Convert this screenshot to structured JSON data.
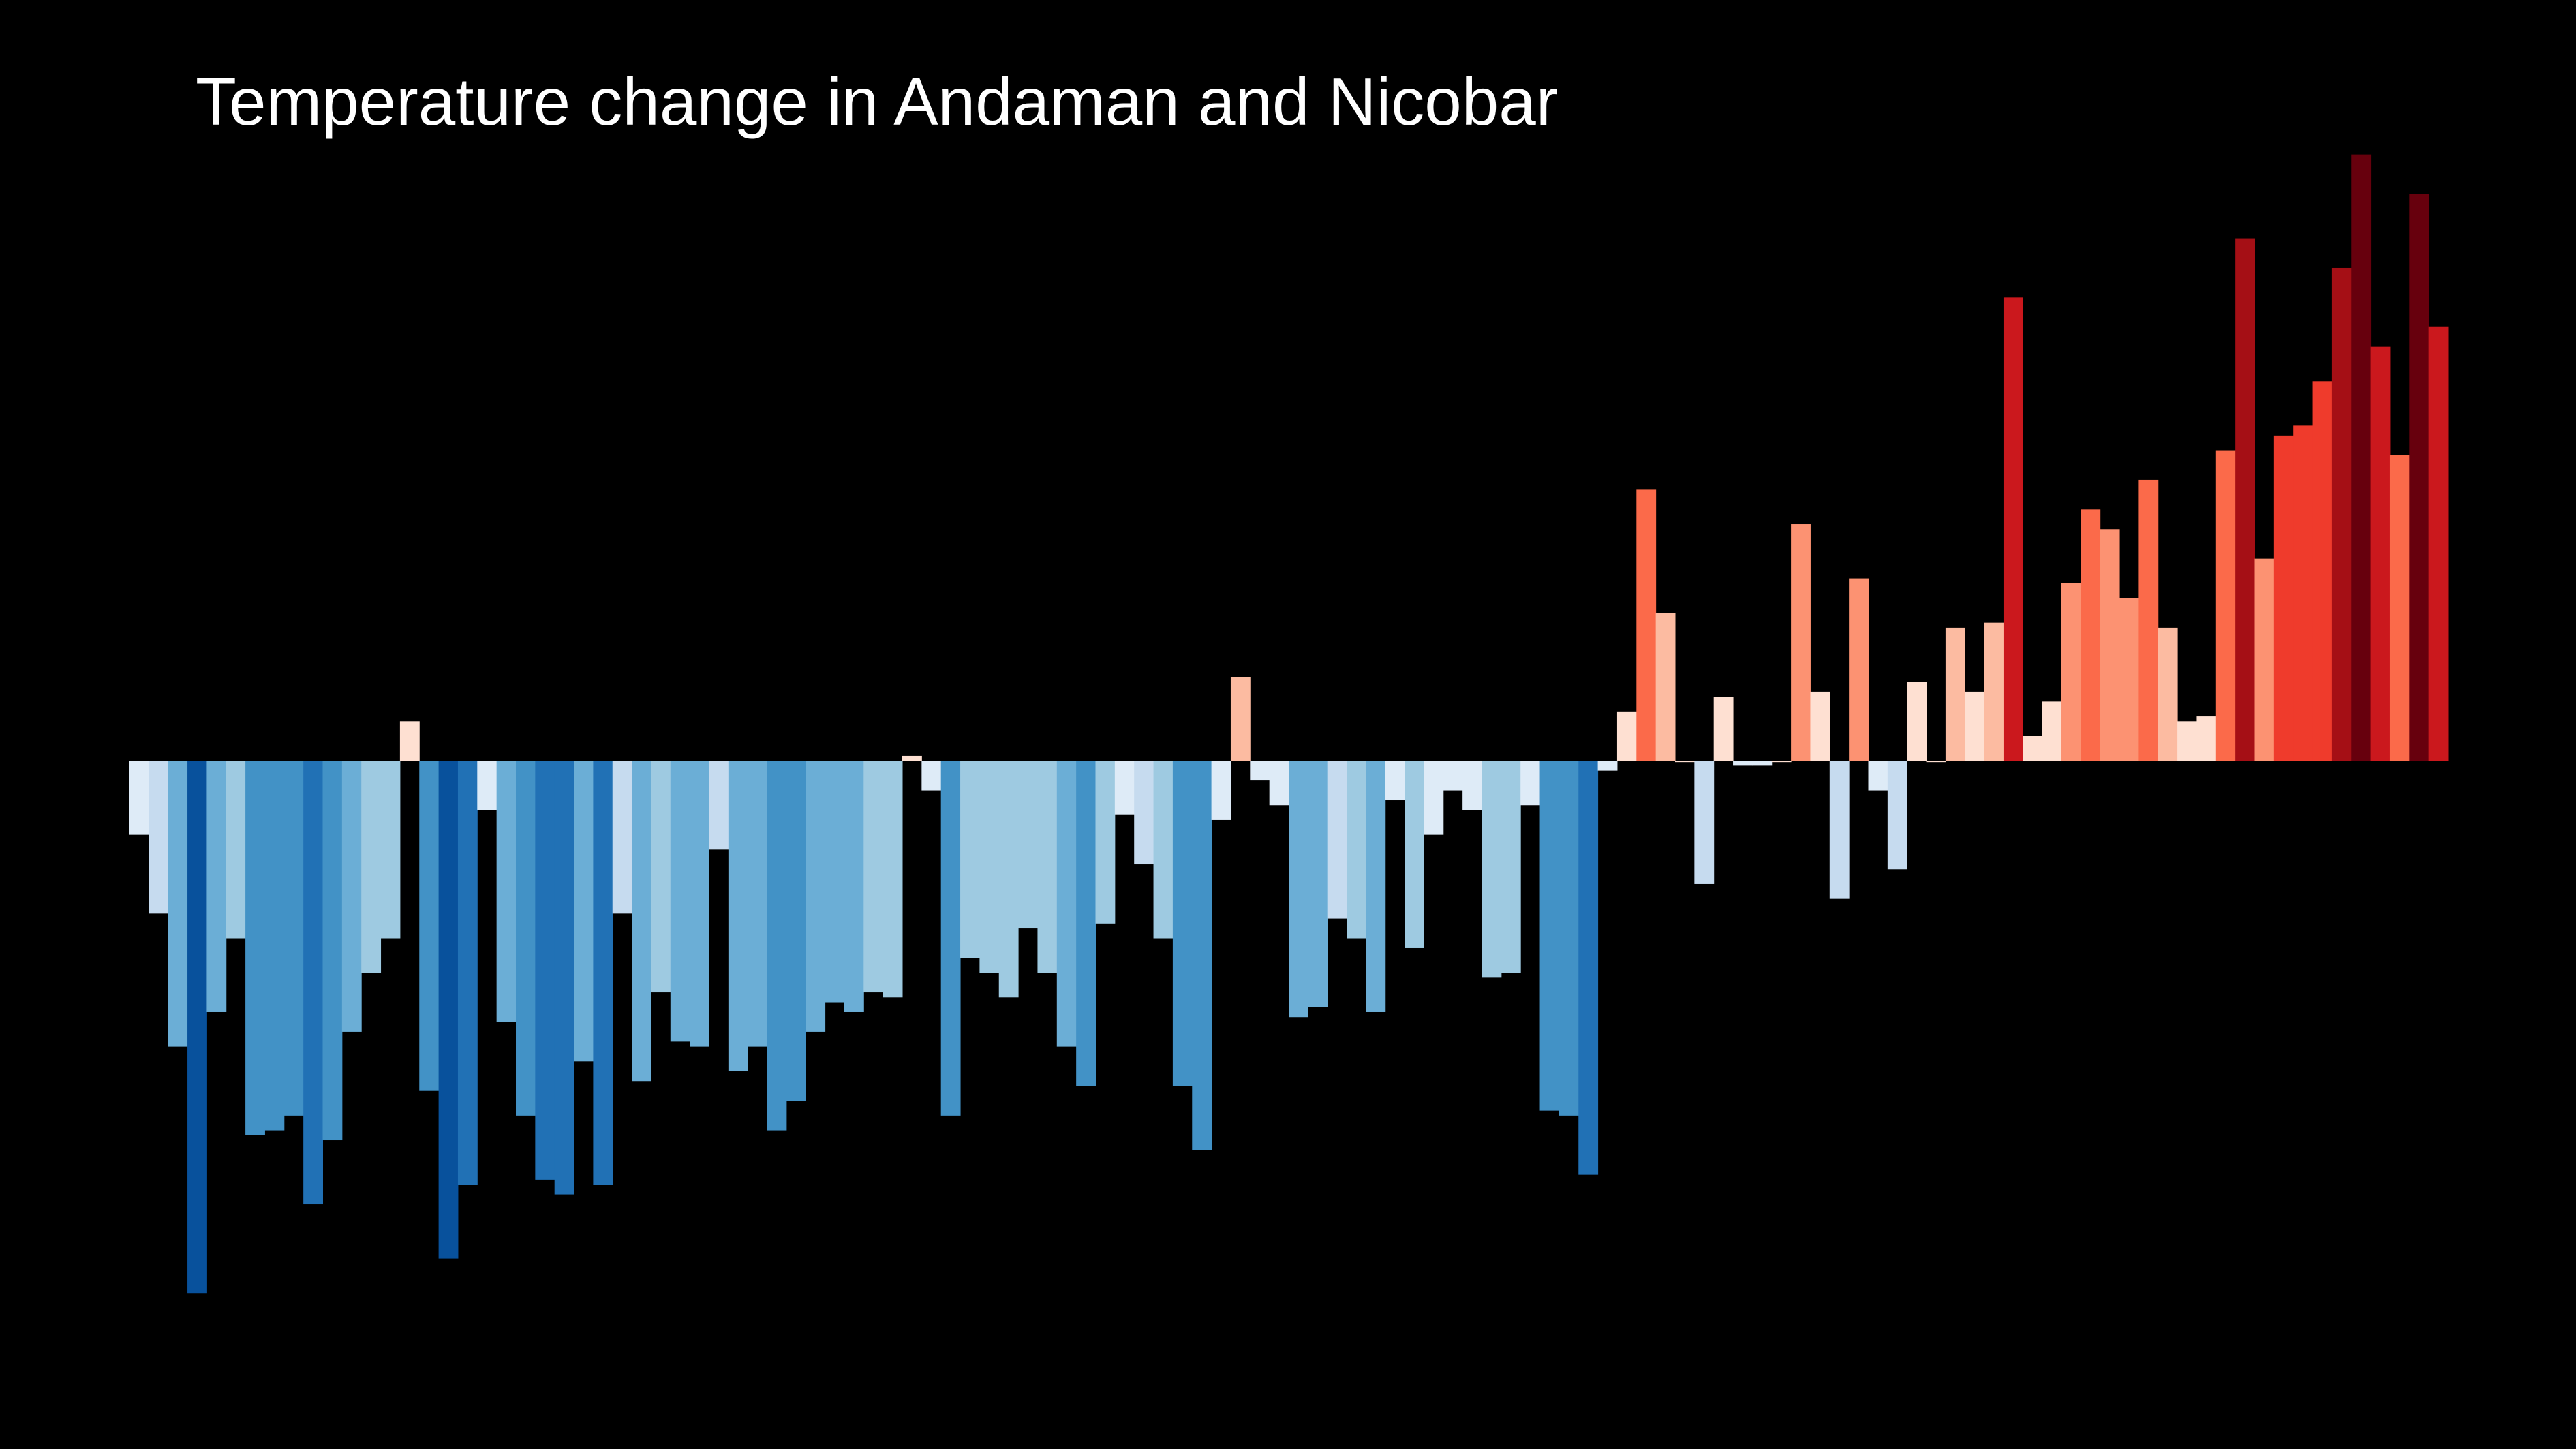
{
  "chart_data": {
    "type": "bar",
    "title": "Temperature change in Andaman and Nicobar",
    "values": [
      -0.15,
      -0.31,
      -0.58,
      -1.08,
      -0.51,
      -0.36,
      -0.76,
      -0.75,
      -0.72,
      -0.9,
      -0.77,
      -0.55,
      -0.43,
      -0.36,
      0.08,
      -0.67,
      -1.01,
      -0.86,
      -0.1,
      -0.53,
      -0.72,
      -0.85,
      -0.88,
      -0.61,
      -0.86,
      -0.31,
      -0.65,
      -0.47,
      -0.57,
      -0.58,
      -0.18,
      -0.63,
      -0.58,
      -0.75,
      -0.69,
      -0.55,
      -0.49,
      -0.51,
      -0.47,
      -0.48,
      0.01,
      -0.06,
      -0.72,
      -0.4,
      -0.43,
      -0.48,
      -0.34,
      -0.43,
      -0.58,
      -0.66,
      -0.33,
      -0.11,
      -0.21,
      -0.36,
      -0.66,
      -0.79,
      -0.12,
      0.17,
      -0.04,
      -0.09,
      -0.52,
      -0.5,
      -0.32,
      -0.36,
      -0.51,
      -0.08,
      -0.38,
      -0.15,
      -0.06,
      -0.1,
      -0.44,
      -0.43,
      -0.09,
      -0.71,
      -0.72,
      -0.84,
      -0.02,
      0.1,
      0.55,
      0.3,
      0,
      -0.25,
      0.13,
      -0.01,
      -0.01,
      0,
      0.48,
      0.14,
      -0.28,
      0.37,
      -0.06,
      -0.22,
      0.16,
      0,
      0.27,
      0.14,
      0.28,
      0.94,
      0.05,
      0.12,
      0.36,
      0.51,
      0.47,
      0.33,
      0.57,
      0.27,
      0.08,
      0.09,
      0.63,
      1.06,
      0.41,
      0.66,
      0.68,
      0.77,
      1.0,
      1.23,
      0.84,
      0.62,
      1.15,
      0.88
    ],
    "color_scale": [
      "#08306b",
      "#08519c",
      "#2171b5",
      "#4292c6",
      "#6baed6",
      "#9ecae1",
      "#c6dbef",
      "#deebf7",
      "#fee0d2",
      "#fcbba1",
      "#fc9272",
      "#fb6a4a",
      "#ef3b2c",
      "#cb181d",
      "#a50f15",
      "#67000d"
    ],
    "ylim": [
      -1.2,
      1.3
    ]
  }
}
